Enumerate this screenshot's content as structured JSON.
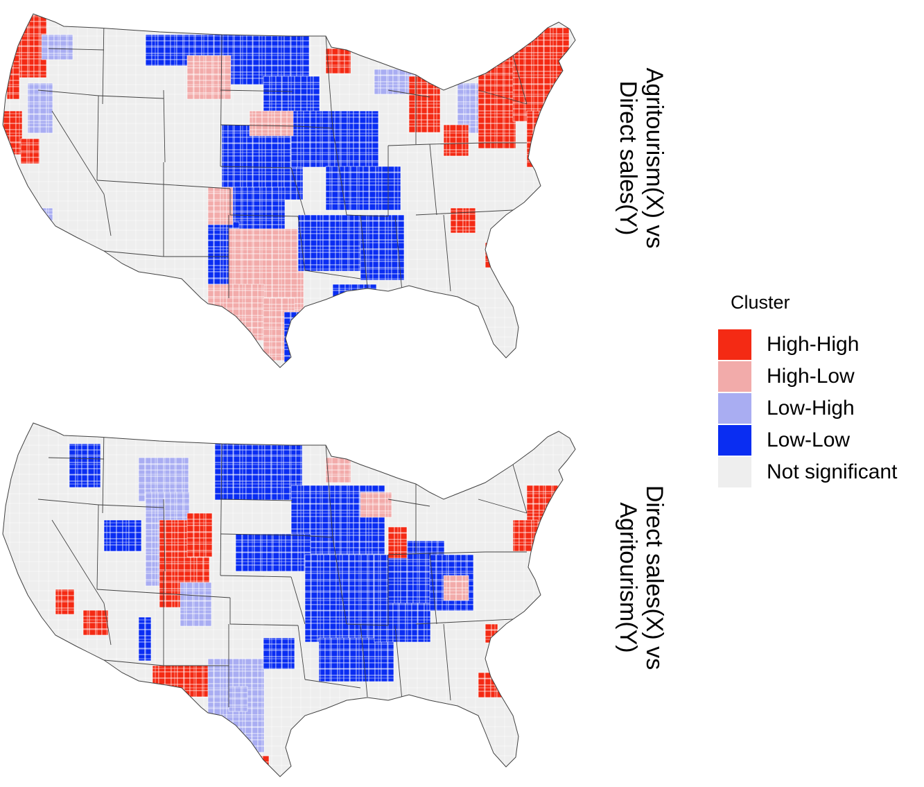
{
  "panels": [
    {
      "id": "top",
      "label_line1": "Agritourism(X) vs",
      "label_line2": "Direct sales(Y)"
    },
    {
      "id": "bottom",
      "label_line1": "Direct sales(X) vs",
      "label_line2": "Agritourism(Y)"
    }
  ],
  "legend": {
    "title": "Cluster",
    "items": [
      {
        "label": "High-High",
        "color": "#f42a14"
      },
      {
        "label": "High-Low",
        "color": "#f2abaa"
      },
      {
        "label": "Low-High",
        "color": "#a9adf2"
      },
      {
        "label": "Low-Low",
        "color": "#0a2df2"
      },
      {
        "label": "Not significant",
        "color": "#eeeeee"
      }
    ]
  },
  "map_colors": {
    "land": "#eeeeee",
    "county_border": "#ffffff",
    "state_border": "#404040"
  }
}
